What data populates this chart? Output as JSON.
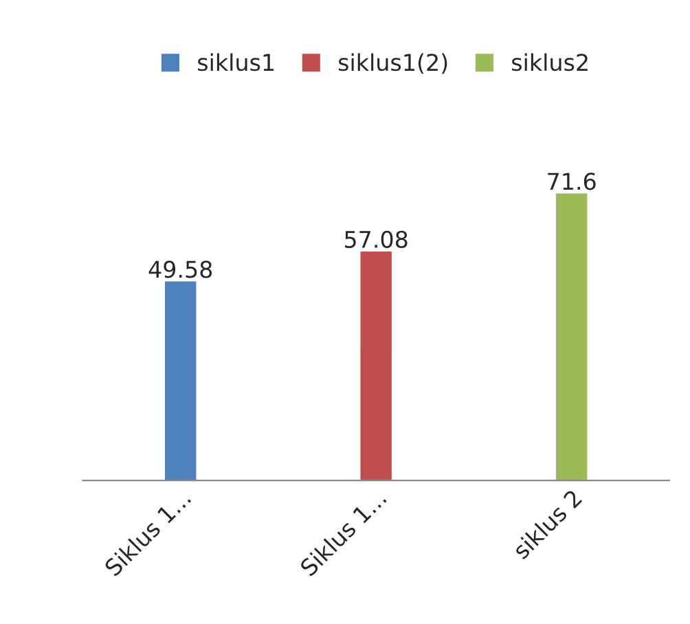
{
  "chart_data": {
    "type": "bar",
    "categories": [
      "Siklus 1...",
      "Siklus 1...",
      "siklus 2"
    ],
    "series": [
      {
        "name": "siklus1",
        "color": "#4f81bd",
        "values": [
          49.58,
          null,
          null
        ]
      },
      {
        "name": "siklus1(2)",
        "color": "#c0504d",
        "values": [
          null,
          57.08,
          null
        ]
      },
      {
        "name": "siklus2",
        "color": "#9bbb59",
        "values": [
          null,
          null,
          71.6
        ]
      }
    ],
    "data_labels": true,
    "legend": "top",
    "grid": false
  }
}
